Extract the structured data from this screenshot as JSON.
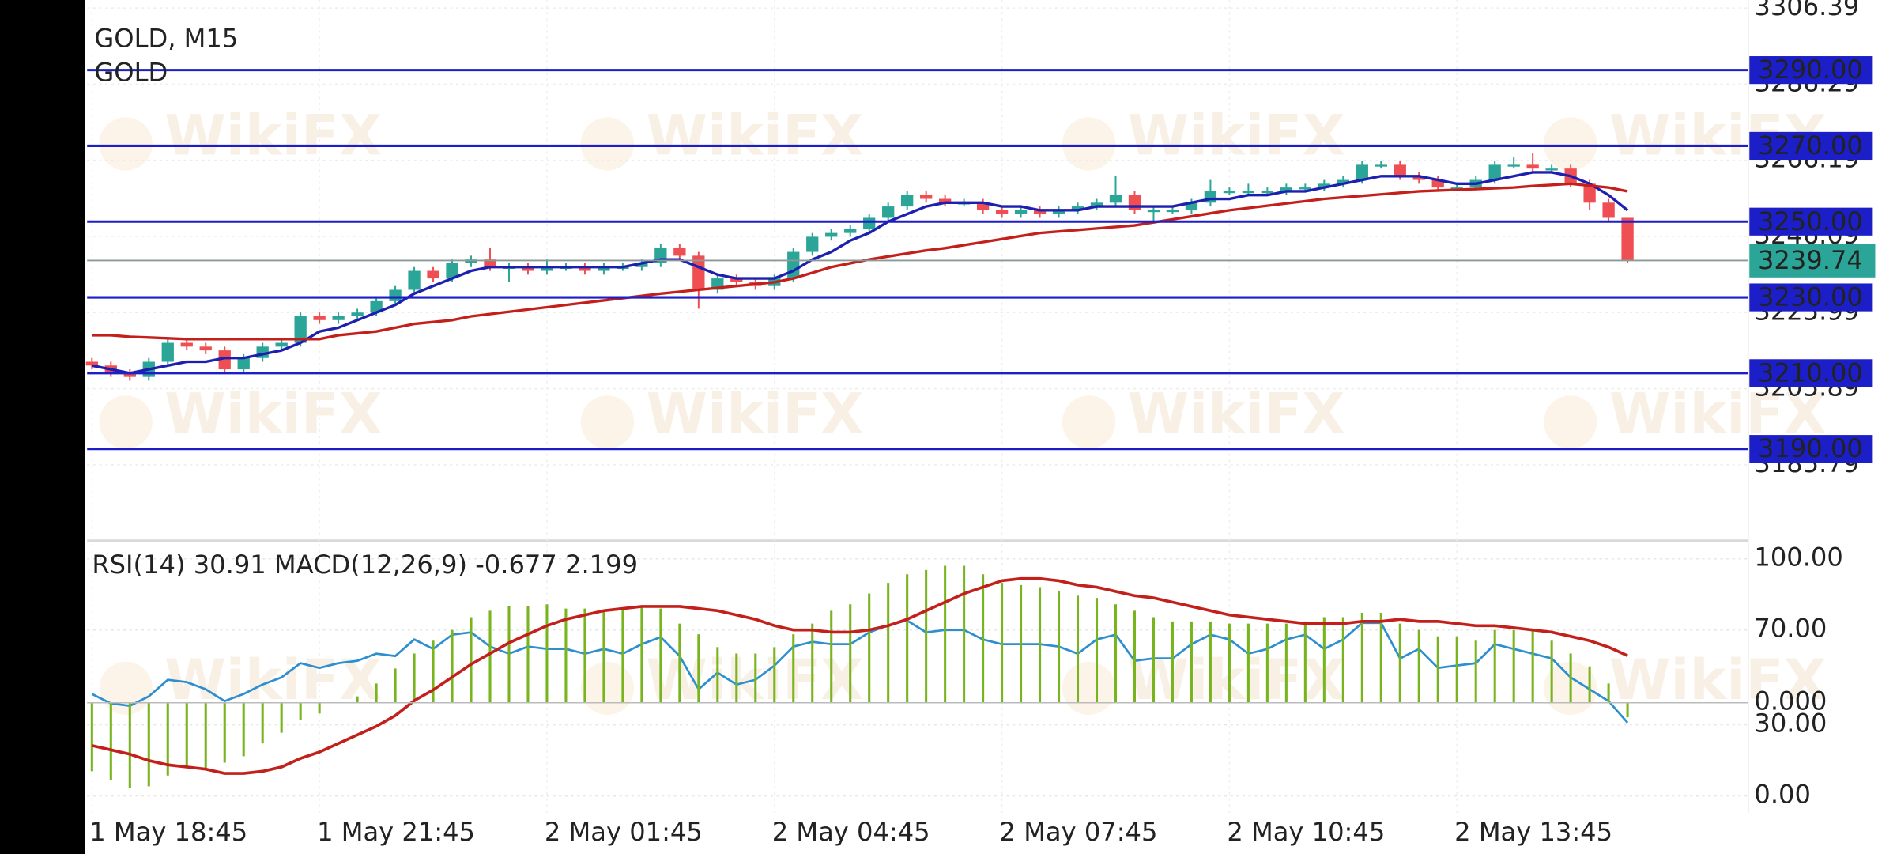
{
  "header": {
    "symbol": "GOLD, M15",
    "name": "GOLD"
  },
  "watermark": "WikiFX",
  "chart_data": [
    {
      "type": "candlestick",
      "categories": [
        "1 May 18:45",
        null,
        null,
        null,
        null,
        null,
        null,
        null,
        null,
        null,
        null,
        null,
        "1 May 21:45",
        null,
        null,
        null,
        null,
        null,
        null,
        null,
        null,
        null,
        null,
        null,
        "2 May 01:45",
        null,
        null,
        null,
        null,
        null,
        null,
        null,
        null,
        null,
        null,
        null,
        "2 May 04:45",
        null,
        null,
        null,
        null,
        null,
        null,
        null,
        null,
        null,
        null,
        null,
        "2 May 07:45",
        null,
        null,
        null,
        null,
        null,
        null,
        null,
        null,
        null,
        null,
        null,
        "2 May 10:45",
        null,
        null,
        null,
        null,
        null,
        null,
        null,
        null,
        null,
        null,
        null,
        "2 May 13:45",
        null,
        null,
        null,
        null,
        null,
        null,
        null,
        null,
        null
      ],
      "open": [
        3213,
        3212,
        3210,
        3209,
        3213,
        3218,
        3217,
        3216,
        3211,
        3214,
        3217,
        3218,
        3225,
        3224,
        3225,
        3226,
        3229,
        3232,
        3237,
        3235,
        3239,
        3240,
        3238,
        3238,
        3237,
        3238,
        3238,
        3237,
        3238,
        3238,
        3239,
        3243,
        3241,
        3232,
        3235,
        3234,
        3233,
        3235,
        3242,
        3246,
        3247,
        3248,
        3251,
        3254,
        3257,
        3256,
        3255,
        3255,
        3253,
        3252,
        3253,
        3252,
        3253,
        3254,
        3255,
        3257,
        3253,
        3253,
        3253,
        3255,
        3258,
        3258,
        3258,
        3258,
        3259,
        3259,
        3260,
        3261,
        3265,
        3265,
        3262,
        3261,
        3259,
        3259,
        3261,
        3265,
        3265,
        3264,
        3264,
        3260,
        3255,
        3251
      ],
      "high": [
        3214,
        3213,
        3211,
        3214,
        3219,
        3219,
        3218,
        3217,
        3215,
        3218,
        3219,
        3226,
        3226,
        3226,
        3227,
        3230,
        3233,
        3238,
        3238,
        3240,
        3241,
        3243,
        3239,
        3239,
        3240,
        3239,
        3239,
        3239,
        3239,
        3240,
        3244,
        3244,
        3242,
        3236,
        3236,
        3235,
        3236,
        3243,
        3247,
        3248,
        3249,
        3252,
        3255,
        3258,
        3258,
        3257,
        3256,
        3256,
        3254,
        3254,
        3254,
        3254,
        3255,
        3256,
        3262,
        3258,
        3254,
        3254,
        3256,
        3261,
        3259,
        3260,
        3259,
        3260,
        3260,
        3261,
        3262,
        3266,
        3266,
        3266,
        3263,
        3262,
        3260,
        3262,
        3266,
        3267,
        3268,
        3265,
        3265,
        3261,
        3256,
        3251
      ],
      "low": [
        3211,
        3209,
        3208,
        3208,
        3212,
        3216,
        3215,
        3210,
        3210,
        3213,
        3216,
        3217,
        3223,
        3223,
        3224,
        3225,
        3228,
        3231,
        3234,
        3234,
        3238,
        3237,
        3234,
        3236,
        3236,
        3237,
        3236,
        3236,
        3237,
        3237,
        3238,
        3240,
        3227,
        3231,
        3233,
        3232,
        3232,
        3234,
        3241,
        3245,
        3246,
        3247,
        3250,
        3253,
        3255,
        3254,
        3254,
        3252,
        3251,
        3251,
        3251,
        3251,
        3252,
        3253,
        3254,
        3252,
        3250,
        3252,
        3252,
        3254,
        3257,
        3257,
        3257,
        3257,
        3258,
        3258,
        3259,
        3260,
        3264,
        3261,
        3260,
        3258,
        3258,
        3258,
        3260,
        3264,
        3263,
        3263,
        3259,
        3253,
        3250,
        3239
      ],
      "close": [
        3212,
        3210,
        3209,
        3213,
        3218,
        3217,
        3216,
        3211,
        3214,
        3217,
        3218,
        3225,
        3224,
        3225,
        3226,
        3229,
        3232,
        3237,
        3235,
        3239,
        3240,
        3238,
        3238,
        3237,
        3238,
        3238,
        3237,
        3238,
        3238,
        3239,
        3243,
        3241,
        3232,
        3235,
        3234,
        3233,
        3235,
        3242,
        3246,
        3247,
        3248,
        3251,
        3254,
        3257,
        3256,
        3255,
        3255,
        3253,
        3252,
        3253,
        3252,
        3253,
        3254,
        3255,
        3257,
        3253,
        3253,
        3253,
        3255,
        3258,
        3258,
        3258,
        3258,
        3259,
        3259,
        3260,
        3261,
        3265,
        3265,
        3262,
        3261,
        3259,
        3259,
        3261,
        3265,
        3265,
        3264,
        3264,
        3260,
        3255,
        3251,
        3239.74
      ],
      "up_color": "#2ba597",
      "down_color": "#ef4f52",
      "series": [
        {
          "color": "#1d1fb0",
          "values": [
            3212,
            3211,
            3210,
            3211,
            3212,
            3213,
            3213,
            3214,
            3214,
            3215,
            3216,
            3218,
            3221,
            3222,
            3224,
            3226,
            3228,
            3231,
            3233,
            3235,
            3237,
            3238,
            3238,
            3238,
            3238,
            3238,
            3238,
            3238,
            3238,
            3239,
            3240,
            3240,
            3238,
            3236,
            3235,
            3235,
            3235,
            3237,
            3240,
            3242,
            3245,
            3247,
            3250,
            3252,
            3254,
            3255,
            3255,
            3255,
            3254,
            3254,
            3253,
            3253,
            3253,
            3254,
            3254,
            3254,
            3254,
            3254,
            3255,
            3256,
            3256,
            3257,
            3257,
            3258,
            3258,
            3259,
            3260,
            3261,
            3262,
            3262,
            3262,
            3261,
            3260,
            3260,
            3261,
            3262,
            3263,
            3263,
            3262,
            3260,
            3257,
            3253
          ]
        },
        {
          "color": "#c3201c",
          "values": [
            3220,
            3220,
            3219.6,
            3219.4,
            3219.2,
            3219,
            3219,
            3219,
            3219,
            3219,
            3219,
            3219,
            3219,
            3220,
            3220.5,
            3221,
            3222,
            3223,
            3223.5,
            3224,
            3225,
            3225.6,
            3226.2,
            3226.8,
            3227.4,
            3228,
            3228.6,
            3229.2,
            3229.8,
            3230.4,
            3231,
            3231.5,
            3232,
            3232.5,
            3233,
            3233.5,
            3234,
            3235,
            3236.5,
            3238,
            3239,
            3240,
            3240.8,
            3241.6,
            3242.4,
            3243,
            3243.8,
            3244.6,
            3245.4,
            3246.2,
            3247,
            3247.4,
            3247.8,
            3248.2,
            3248.6,
            3249,
            3249.8,
            3250.6,
            3251.4,
            3252.2,
            3253,
            3253.6,
            3254.2,
            3254.8,
            3255.4,
            3256,
            3256.4,
            3256.8,
            3257.2,
            3257.6,
            3258,
            3258.2,
            3258.4,
            3258.6,
            3258.8,
            3259,
            3259.4,
            3259.7,
            3260,
            3259.5,
            3259,
            3258
          ]
        }
      ],
      "ylim": [
        3166.4,
        3308.5
      ],
      "yticks": [
        3306.39,
        3286.29,
        3266.19,
        3246.09,
        3225.99,
        3205.89,
        3185.79
      ],
      "grid": true,
      "level_color": "#1c1fc8",
      "price_line_color": "#8a9a96",
      "levels": [
        {
          "value": 3290,
          "label": "3290.00"
        },
        {
          "value": 3270,
          "label": "3270.00"
        },
        {
          "value": 3250,
          "label": "3250.00"
        },
        {
          "value": 3230,
          "label": "3230.00"
        },
        {
          "value": 3210,
          "label": "3210.00"
        },
        {
          "value": 3190,
          "label": "3190.00"
        }
      ]
    },
    {
      "type": "indicator",
      "series": [
        {
          "name": "RSI(14)",
          "color": "#2e8fd0",
          "axis": "y2",
          "values": [
            43,
            39,
            38,
            42,
            49,
            48,
            45,
            40,
            43,
            47,
            50,
            56,
            54,
            56,
            57,
            60,
            59,
            66,
            62,
            68,
            69,
            63,
            60,
            63,
            62,
            62,
            60,
            62,
            60,
            64,
            67,
            59,
            45,
            52,
            47,
            49,
            55,
            63,
            65,
            64,
            64,
            69,
            72,
            74,
            69,
            70,
            70,
            66,
            64,
            64,
            64,
            63,
            60,
            66,
            68,
            57,
            58,
            58,
            64,
            68,
            66,
            60,
            62,
            66,
            68,
            62,
            66,
            73,
            73,
            58,
            62,
            54,
            55,
            56,
            64,
            62,
            60,
            58,
            50,
            45,
            40,
            30.91
          ]
        },
        {
          "name": "MACD(12,26,9)",
          "color": "#78b41e",
          "values": [
            -3.2,
            -3.6,
            -4.0,
            -3.9,
            -3.4,
            -3.0,
            -3.1,
            -2.8,
            -2.5,
            -1.9,
            -1.4,
            -0.8,
            -0.5,
            0.0,
            0.3,
            0.9,
            1.6,
            2.3,
            2.9,
            3.4,
            4.0,
            4.3,
            4.5,
            4.5,
            4.6,
            4.4,
            4.4,
            4.3,
            4.4,
            4.5,
            4.4,
            3.7,
            3.2,
            2.6,
            2.3,
            2.3,
            2.6,
            3.2,
            3.7,
            4.3,
            4.6,
            5.1,
            5.6,
            6.0,
            6.2,
            6.4,
            6.4,
            6.0,
            5.6,
            5.5,
            5.4,
            5.2,
            5.0,
            4.9,
            4.6,
            4.3,
            4.0,
            3.8,
            3.8,
            3.8,
            3.7,
            3.7,
            3.7,
            3.7,
            3.8,
            4.0,
            4.0,
            4.2,
            4.2,
            3.7,
            3.4,
            3.1,
            3.1,
            2.9,
            3.4,
            3.4,
            3.4,
            2.9,
            2.3,
            1.7,
            0.9,
            -0.677
          ]
        },
        {
          "color": "#c3201c",
          "values": [
            -2.0,
            -2.2,
            -2.4,
            -2.7,
            -2.9,
            -3.0,
            -3.1,
            -3.3,
            -3.3,
            -3.2,
            -3.0,
            -2.6,
            -2.3,
            -1.9,
            -1.5,
            -1.1,
            -0.6,
            0.1,
            0.6,
            1.2,
            1.8,
            2.3,
            2.8,
            3.2,
            3.6,
            3.9,
            4.1,
            4.3,
            4.4,
            4.5,
            4.5,
            4.5,
            4.4,
            4.3,
            4.1,
            3.9,
            3.6,
            3.4,
            3.4,
            3.3,
            3.3,
            3.4,
            3.6,
            3.9,
            4.3,
            4.7,
            5.1,
            5.4,
            5.7,
            5.8,
            5.8,
            5.7,
            5.5,
            5.4,
            5.2,
            5.0,
            4.9,
            4.7,
            4.5,
            4.3,
            4.1,
            4.0,
            3.9,
            3.8,
            3.7,
            3.7,
            3.7,
            3.8,
            3.8,
            3.9,
            3.8,
            3.8,
            3.7,
            3.6,
            3.6,
            3.5,
            3.4,
            3.3,
            3.1,
            2.9,
            2.6,
            2.199
          ]
        }
      ],
      "ylim": [
        -5.03,
        7.4
      ],
      "yticks": [
        {
          "value": 0,
          "label": "0.000"
        }
      ],
      "y2lim": [
        -6.12,
        106.12
      ],
      "y2ticks": [
        {
          "value": 100,
          "label": "100.00"
        },
        {
          "value": 70,
          "label": "70.00"
        },
        {
          "value": 30,
          "label": "30.00"
        },
        {
          "value": 0,
          "label": "0.00"
        }
      ],
      "grid": true
    }
  ]
}
